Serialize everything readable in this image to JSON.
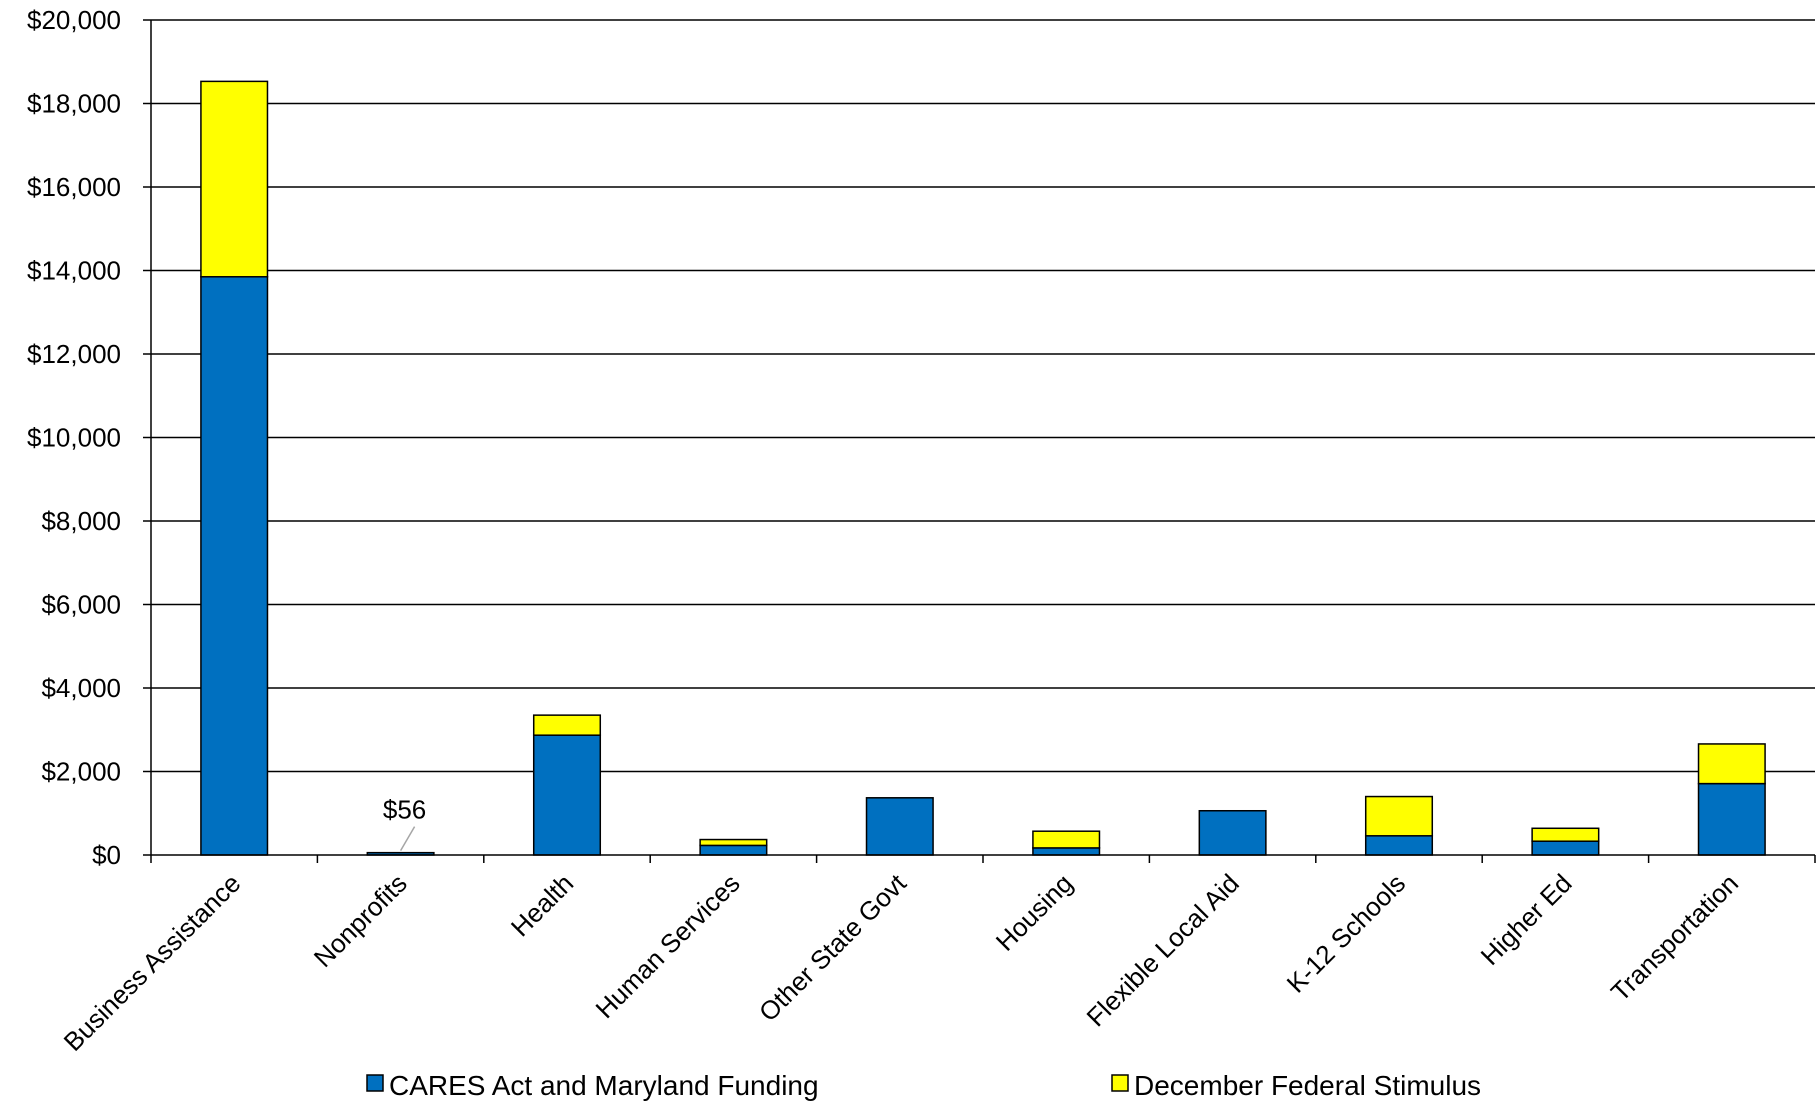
{
  "chart_data": {
    "type": "bar",
    "stacked": true,
    "title": "",
    "xlabel": "",
    "ylabel": "",
    "ylim": [
      0,
      20000
    ],
    "yticks": [
      "$0",
      "$2,000",
      "$4,000",
      "$6,000",
      "$8,000",
      "$10,000",
      "$12,000",
      "$14,000",
      "$16,000",
      "$18,000",
      "$20,000"
    ],
    "ytick_values": [
      0,
      2000,
      4000,
      6000,
      8000,
      10000,
      12000,
      14000,
      16000,
      18000,
      20000
    ],
    "grid": true,
    "legend_position": "bottom",
    "categories": [
      "Business Assistance",
      "Nonprofits",
      "Health",
      "Human Services",
      "Other State Govt",
      "Housing",
      "Flexible Local Aid",
      "K-12 Schools",
      "Higher Ed",
      "Transportation"
    ],
    "series": [
      {
        "name": "CARES Act and Maryland Funding",
        "color": "#0070C0",
        "values": [
          13850,
          56,
          2870,
          230,
          1370,
          170,
          1060,
          460,
          330,
          1710
        ]
      },
      {
        "name": "December Federal Stimulus",
        "color": "#FFFF00",
        "values": [
          4680,
          0,
          480,
          140,
          0,
          400,
          0,
          940,
          310,
          950
        ]
      }
    ],
    "annotations": [
      {
        "category": "Nonprofits",
        "text": "$56"
      }
    ]
  }
}
